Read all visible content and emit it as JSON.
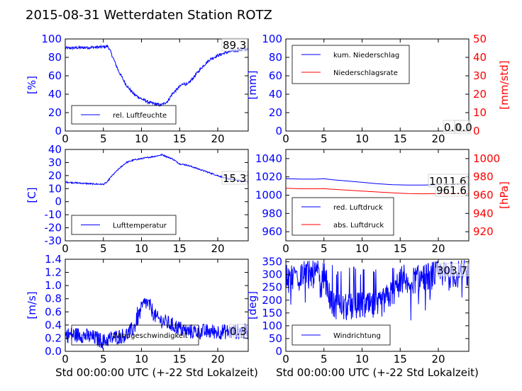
{
  "figure": {
    "title": "2015-08-31 Wetterdaten Station ROTZ",
    "colors": {
      "blue": "#0000ff",
      "red": "#ff0000",
      "black": "#000000",
      "light_blue": "#8c8cff"
    }
  },
  "chart_data": [
    {
      "id": "humidity",
      "type": "line",
      "xlim": [
        0,
        24
      ],
      "xticks": [
        0,
        5,
        10,
        15,
        20
      ],
      "ylim": [
        0,
        100
      ],
      "yticks": [
        0,
        20,
        40,
        60,
        80,
        100
      ],
      "ylabel": "[%]",
      "annotation": "89.3",
      "legend": {
        "placement": "lower-left",
        "entries": [
          "rel. Luftfeuchte"
        ]
      },
      "series": [
        {
          "name": "rel. Luftfeuchte",
          "color": "#0000ff",
          "noise": 1.6,
          "x": [
            0,
            2,
            4,
            5.2,
            5.6,
            6,
            7,
            8,
            9,
            10,
            11,
            12,
            12.5,
            13,
            13.5,
            14,
            15,
            15.5,
            16,
            17,
            18,
            19,
            20,
            21,
            22,
            23,
            24
          ],
          "y": [
            90,
            90.5,
            91,
            91.5,
            92,
            85,
            65,
            50,
            40,
            35,
            31,
            29,
            28,
            30,
            33,
            40,
            48,
            52,
            50,
            60,
            70,
            78,
            82,
            85,
            87,
            88,
            89.3
          ]
        }
      ]
    },
    {
      "id": "precipitation",
      "type": "line",
      "xlim": [
        0,
        24
      ],
      "xticks": [
        0,
        5,
        10,
        15,
        20
      ],
      "ylim": [
        0,
        100
      ],
      "yticks": [
        0,
        20,
        40,
        60,
        80,
        100
      ],
      "ylabel": "[mm]",
      "ylim_right": [
        0,
        50
      ],
      "yticks_right": [
        0,
        10,
        20,
        30,
        40,
        50
      ],
      "ylabel_right": "[mm/std]",
      "annotations": [
        "0.0",
        "0.0"
      ],
      "legend": {
        "placement": "upper-left",
        "entries": [
          "kum. Niederschlag",
          "Niederschlagsrate"
        ]
      },
      "series": [
        {
          "name": "kum. Niederschlag",
          "color": "#0000ff",
          "axis": "left",
          "x": [
            0,
            24
          ],
          "y": [
            0,
            0
          ]
        },
        {
          "name": "Niederschlagsrate",
          "color": "#ff0000",
          "axis": "right",
          "x": [
            0,
            24
          ],
          "y": [
            0,
            0
          ]
        }
      ]
    },
    {
      "id": "temperature",
      "type": "line",
      "xlim": [
        0,
        24
      ],
      "xticks": [
        0,
        5,
        10,
        15,
        20
      ],
      "ylim": [
        -30,
        40
      ],
      "yticks": [
        -30,
        -20,
        -10,
        0,
        10,
        20,
        30,
        40
      ],
      "ylabel": "[C]",
      "annotation": "15.3",
      "legend": {
        "placement": "lower-left",
        "entries": [
          "Lufttemperatur"
        ]
      },
      "series": [
        {
          "name": "Lufttemperatur",
          "color": "#0000ff",
          "noise": 0.5,
          "x": [
            0,
            1,
            2,
            3,
            4,
            5,
            5.5,
            6,
            7,
            8,
            9,
            10,
            11,
            12,
            12.7,
            13.5,
            14,
            15,
            16,
            17,
            18,
            19,
            20,
            21,
            22,
            23,
            24
          ],
          "y": [
            15,
            14.6,
            14.2,
            13.8,
            13.5,
            13.3,
            15,
            19,
            25,
            30,
            32,
            33,
            34,
            35,
            36,
            34,
            33,
            29,
            28,
            26,
            24,
            22,
            20,
            18,
            17,
            16,
            15.3
          ]
        }
      ]
    },
    {
      "id": "pressure",
      "type": "line",
      "xlim": [
        0,
        24
      ],
      "xticks": [
        0,
        5,
        10,
        15,
        20
      ],
      "ylim": [
        950,
        1050
      ],
      "yticks": [
        960,
        980,
        1000,
        1020,
        1040
      ],
      "ylim_right": [
        910,
        1010
      ],
      "yticks_right": [
        920,
        940,
        960,
        980,
        1000
      ],
      "ylabel_right": "[hPa]",
      "annotations": [
        "1011.6",
        "961.6"
      ],
      "legend": {
        "placement": "lower-left",
        "entries": [
          "red. Luftdruck",
          "abs. Luftdruck"
        ]
      },
      "series": [
        {
          "name": "red. Luftdruck",
          "color": "#0000ff",
          "axis": "left",
          "x": [
            0,
            2,
            4,
            5,
            6,
            8,
            10,
            12,
            14,
            16,
            18,
            20,
            22,
            24
          ],
          "y": [
            1018,
            1017.5,
            1017.5,
            1018,
            1017,
            1015.5,
            1014,
            1012.5,
            1011.5,
            1011,
            1011,
            1011.5,
            1011.6,
            1011.6
          ]
        },
        {
          "name": "abs. Luftdruck",
          "color": "#ff0000",
          "axis": "right",
          "x": [
            0,
            2,
            4,
            5,
            6,
            8,
            10,
            12,
            14,
            16,
            18,
            20,
            22,
            24
          ],
          "y": [
            967.5,
            967,
            967,
            967.2,
            966.5,
            965.5,
            964.5,
            963.5,
            962.5,
            961.8,
            961.5,
            961.6,
            961.6,
            961.6
          ]
        }
      ]
    },
    {
      "id": "wind_speed",
      "type": "line",
      "xlim": [
        0,
        24
      ],
      "xticks": [
        0,
        5,
        10,
        15,
        20
      ],
      "ylim": [
        0,
        1.4
      ],
      "yticks": [
        0.0,
        0.2,
        0.4,
        0.6,
        0.8,
        1.0,
        1.2,
        1.4
      ],
      "ylabel": "[m/s]",
      "xlabel": "Std 00:00:00 UTC (+-22 Std Lokalzeit)",
      "annotation": "0.3",
      "legend": {
        "placement": "lower-left",
        "entries": [
          "Windgeschwindigkeit"
        ]
      },
      "series": [
        {
          "name": "Windgeschwindigkeit",
          "color": "#0000ff",
          "noise": 0.12,
          "x": [
            0,
            2,
            4,
            5,
            6,
            8,
            9,
            9.5,
            10,
            10.5,
            11,
            11.5,
            12,
            13,
            14,
            15,
            16,
            17,
            18,
            20,
            21,
            22,
            24
          ],
          "y": [
            0.25,
            0.25,
            0.2,
            0.15,
            0.2,
            0.25,
            0.35,
            0.5,
            0.65,
            0.75,
            0.7,
            0.6,
            0.5,
            0.45,
            0.4,
            0.35,
            0.3,
            0.3,
            0.3,
            0.3,
            0.3,
            0.3,
            0.3
          ]
        }
      ]
    },
    {
      "id": "wind_direction",
      "type": "line",
      "xlim": [
        0,
        24
      ],
      "xticks": [
        0,
        5,
        10,
        15,
        20
      ],
      "ylim": [
        0,
        360
      ],
      "yticks": [
        0,
        50,
        100,
        150,
        200,
        250,
        300,
        350
      ],
      "ylabel": "[deg]",
      "xlabel": "Std 00:00:00 UTC (+-22 Std Lokalzeit)",
      "annotation": "303.7",
      "legend": {
        "placement": "lower-left",
        "entries": [
          "Windrichtung"
        ]
      },
      "series": [
        {
          "name": "Windrichtung",
          "color": "#0000ff",
          "noise": 55,
          "x": [
            0,
            2,
            4,
            5,
            5.5,
            6,
            8,
            10,
            12,
            13,
            14,
            15,
            16,
            18,
            20,
            22,
            24
          ],
          "y": [
            300,
            300,
            300,
            300,
            250,
            180,
            170,
            180,
            170,
            200,
            230,
            260,
            270,
            290,
            300,
            300,
            303.7
          ]
        }
      ]
    }
  ]
}
